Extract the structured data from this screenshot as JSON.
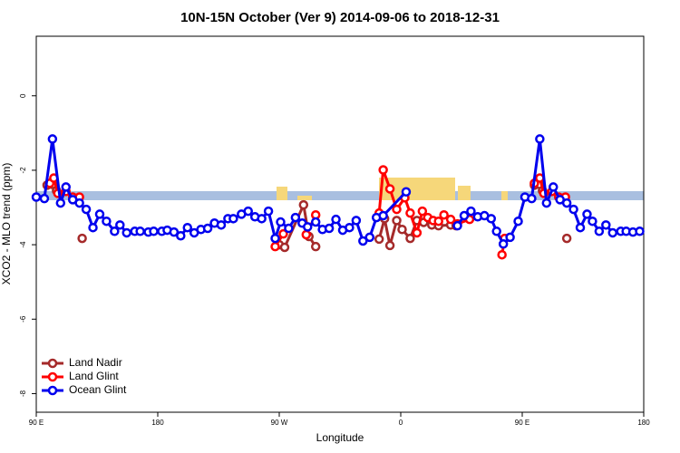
{
  "chart_data": {
    "type": "line",
    "title": "10N-15N October (Ver 9)   2014-09-06 to 2018-12-31",
    "x_label": "Longitude",
    "y_label": "XCO2 - MLO trend (ppm)",
    "xlim": [
      90,
      540
    ],
    "ylim": [
      -8.5,
      1.6
    ],
    "xticks": [
      {
        "value": 90,
        "label": "90 E"
      },
      {
        "value": 180,
        "label": "180"
      },
      {
        "value": 270,
        "label": "90 W"
      },
      {
        "value": 360,
        "label": "0"
      },
      {
        "value": 450,
        "label": "90 E"
      },
      {
        "value": 540,
        "label": "180"
      }
    ],
    "yticks": [
      0,
      -2,
      -4,
      -6,
      -8
    ],
    "legend": "bottom-left",
    "series": [
      {
        "name": "Land Nadir",
        "color": "#a52a2a",
        "x": [
          98,
          102,
          105,
          null,
          124,
          null,
          270,
          274,
          288,
          292,
          297,
          null,
          344,
          348,
          352,
          357,
          361,
          367,
          372,
          377,
          383,
          388,
          397,
          401,
          null,
          459,
          463,
          465,
          null,
          483
        ],
        "values": [
          -2.4,
          -2.38,
          -2.55,
          null,
          -3.83,
          null,
          -4.0,
          -4.07,
          -2.93,
          -3.78,
          -4.05,
          null,
          -3.85,
          -3.3,
          -4.02,
          -3.35,
          -3.59,
          -3.83,
          -3.35,
          -3.4,
          -3.47,
          -3.49,
          -3.47,
          -3.49,
          null,
          -2.4,
          -2.38,
          -2.55,
          null,
          -3.83
        ]
      },
      {
        "name": "Land Glint",
        "color": "#ff0000",
        "x": [
          100,
          103,
          106,
          112,
          117,
          122,
          null,
          267,
          273,
          null,
          290,
          297,
          null,
          344,
          347,
          352,
          357,
          363,
          367,
          372,
          376,
          380,
          384,
          388,
          392,
          397,
          402,
          411,
          null,
          435,
          437,
          null,
          459,
          463,
          466,
          472,
          477,
          482
        ],
        "values": [
          -2.35,
          -2.21,
          -2.62,
          -2.57,
          -2.72,
          -2.72,
          null,
          -4.05,
          -3.71,
          null,
          -3.73,
          -3.2,
          null,
          -3.15,
          -1.99,
          -2.5,
          -3.05,
          -2.74,
          -3.15,
          -3.68,
          -3.1,
          -3.27,
          -3.35,
          -3.37,
          -3.2,
          -3.32,
          -3.44,
          -3.32,
          null,
          -4.27,
          -3.83,
          null,
          -2.35,
          -2.21,
          -2.62,
          -2.57,
          -2.72,
          -2.72
        ]
      },
      {
        "name": "Ocean Glint",
        "color": "#0000ee",
        "x": [
          90,
          96,
          102,
          108,
          112,
          117,
          122,
          127,
          132,
          137,
          142,
          148,
          152,
          157,
          163,
          167,
          173,
          177,
          183,
          187,
          192,
          197,
          202,
          207,
          212,
          217,
          222,
          227,
          232,
          236,
          242,
          247,
          252,
          257,
          262,
          267,
          271,
          277,
          282,
          287,
          291,
          297,
          302,
          307,
          312,
          317,
          322,
          327,
          332,
          337,
          342,
          347,
          364,
          null,
          402,
          407,
          412,
          417,
          422,
          427,
          431,
          436,
          441,
          447,
          452,
          457,
          463,
          468,
          473,
          478,
          483,
          488,
          493,
          498,
          502,
          507,
          512,
          517,
          523,
          527,
          532,
          537
        ],
        "values": [
          -2.72,
          -2.76,
          -1.16,
          -2.88,
          -2.45,
          -2.79,
          -2.88,
          -3.05,
          -3.54,
          -3.18,
          -3.37,
          -3.64,
          -3.47,
          -3.68,
          -3.64,
          -3.64,
          -3.66,
          -3.64,
          -3.64,
          -3.61,
          -3.66,
          -3.76,
          -3.54,
          -3.68,
          -3.59,
          -3.56,
          -3.42,
          -3.47,
          -3.3,
          -3.3,
          -3.18,
          -3.1,
          -3.25,
          -3.3,
          -3.1,
          -3.83,
          -3.39,
          -3.56,
          -3.27,
          -3.42,
          -3.52,
          -3.39,
          -3.59,
          -3.56,
          -3.32,
          -3.61,
          -3.54,
          -3.35,
          -3.9,
          -3.8,
          -3.27,
          -3.22,
          -2.58,
          null,
          -3.49,
          -3.22,
          -3.1,
          -3.25,
          -3.22,
          -3.3,
          -3.64,
          -3.98,
          -3.8,
          -3.37,
          -2.72,
          -2.76,
          -1.16,
          -2.88,
          -2.45,
          -2.79,
          -2.88,
          -3.05,
          -3.54,
          -3.18,
          -3.37,
          -3.64,
          -3.47,
          -3.68,
          -3.64,
          -3.64,
          -3.66,
          -3.64
        ]
      }
    ]
  }
}
